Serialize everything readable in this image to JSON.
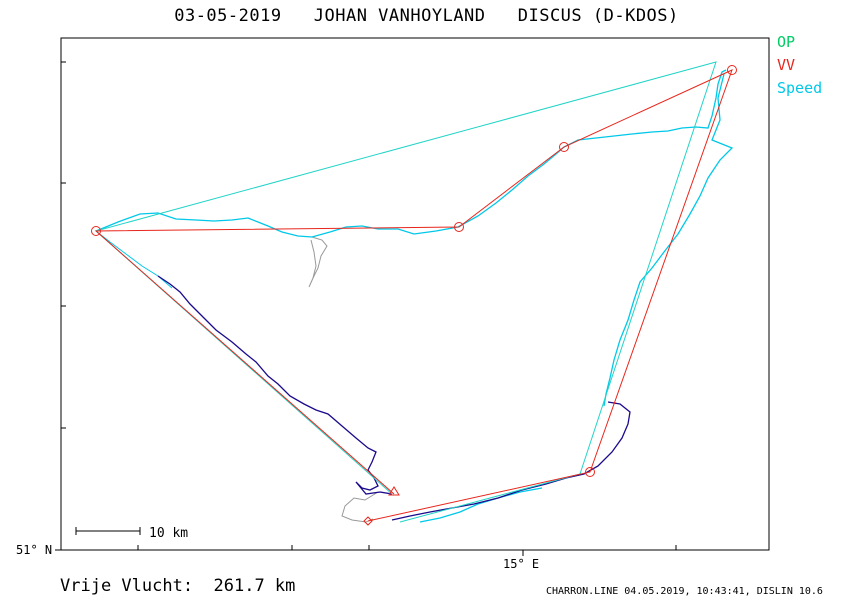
{
  "title": "03-05-2019   JOHAN VANHOYLAND   DISCUS (D-KDOS)",
  "legend": {
    "op": {
      "label": "OP",
      "color": "#00cc66"
    },
    "vv": {
      "label": "VV",
      "color": "#e8261c"
    },
    "speed": {
      "label": "Speed",
      "color": "#00c8e8"
    }
  },
  "axes": {
    "lat_label": "51° N",
    "lon_label": "15° E"
  },
  "scale_bar": {
    "label": "10 km"
  },
  "distance": "Vrije Vlucht:  261.7 km",
  "footer": "CHARRON.LINE 04.05.2019, 10:43:41, DISLIN 10.6",
  "colors": {
    "track_low": "#1a0a8c",
    "track_fast": "#00c8e8",
    "track_ground": "#999999",
    "vv_line": "#e8261c",
    "op_line": "#22d4c8"
  }
}
